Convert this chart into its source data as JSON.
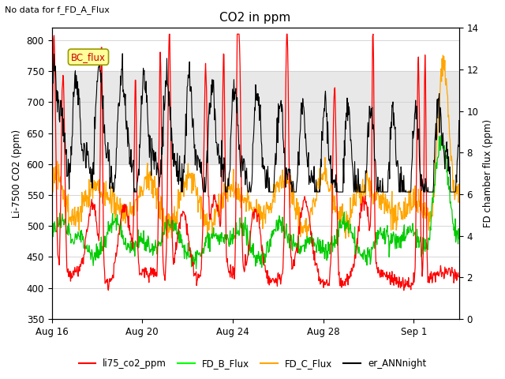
{
  "title": "CO2 in ppm",
  "top_left_text": "No data for f_FD_A_Flux",
  "ylabel_left": "Li-7500 CO2 (ppm)",
  "ylabel_right": "FD chamber flux (ppm)",
  "ylim_left": [
    350,
    820
  ],
  "ylim_right": [
    0,
    14
  ],
  "yticks_left": [
    350,
    400,
    450,
    500,
    550,
    600,
    650,
    700,
    750,
    800
  ],
  "yticks_right": [
    0,
    2,
    4,
    6,
    8,
    10,
    12,
    14
  ],
  "xtick_labels": [
    "Aug 16",
    "Aug 20",
    "Aug 24",
    "Aug 28",
    "Sep 1"
  ],
  "xtick_positions": [
    0,
    4,
    8,
    12,
    16
  ],
  "xlim": [
    0,
    18
  ],
  "shaded_band": [
    600,
    750
  ],
  "legend_labels": [
    "li75_co2_ppm",
    "FD_B_Flux",
    "FD_C_Flux",
    "er_ANNnight"
  ],
  "legend_colors": [
    "#ff0000",
    "#00ff00",
    "#ffa500",
    "#000000"
  ],
  "line_colors": {
    "li75": "#ff0000",
    "FD_B": "#00cc00",
    "FD_C": "#ffa500",
    "ANN": "#000000"
  },
  "bc_flux_color": "#cc0000",
  "bc_flux_bg": "#ffff99",
  "bc_flux_edge": "#999900",
  "background_color": "#ffffff",
  "grid_color": "#d0d0d0",
  "figsize": [
    6.4,
    4.8
  ],
  "dpi": 100
}
